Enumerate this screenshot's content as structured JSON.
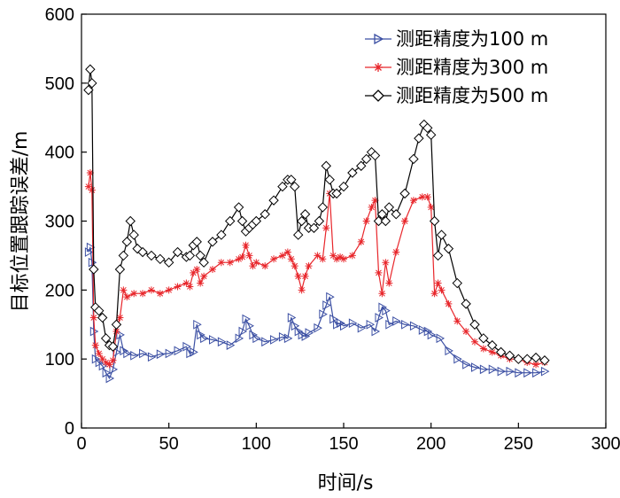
{
  "chart_data": {
    "type": "line",
    "title": "",
    "xlabel": "时间/s",
    "ylabel": "目标位置跟踪误差/m",
    "xlim": [
      0,
      300
    ],
    "ylim": [
      0,
      600
    ],
    "xticks": [
      0,
      50,
      100,
      150,
      200,
      250,
      300
    ],
    "yticks": [
      0,
      100,
      200,
      300,
      400,
      500,
      600
    ],
    "xtick_labels": [
      "0",
      "50",
      "100",
      "150",
      "200",
      "250",
      "300"
    ],
    "ytick_labels": [
      "0",
      "100",
      "200",
      "300",
      "400",
      "500",
      "600"
    ],
    "grid": false,
    "legend_position": "top-right",
    "series": [
      {
        "name": "测距精度为100 m",
        "color": "#3b4fa3",
        "marker": "triangle-right",
        "x": [
          4,
          5,
          6,
          7,
          8,
          10,
          12,
          14,
          16,
          18,
          20,
          22,
          24,
          26,
          30,
          35,
          40,
          45,
          50,
          55,
          60,
          62,
          64,
          66,
          68,
          70,
          75,
          80,
          85,
          90,
          92,
          94,
          96,
          98,
          100,
          105,
          110,
          115,
          118,
          120,
          122,
          124,
          126,
          128,
          130,
          135,
          138,
          140,
          142,
          144,
          146,
          148,
          150,
          155,
          160,
          165,
          168,
          170,
          172,
          174,
          176,
          180,
          185,
          190,
          195,
          198,
          200,
          205,
          210,
          215,
          220,
          225,
          230,
          235,
          240,
          245,
          250,
          255,
          260,
          265
        ],
        "y": [
          255,
          262,
          240,
          140,
          100,
          95,
          90,
          80,
          72,
          85,
          110,
          135,
          112,
          108,
          105,
          108,
          103,
          107,
          108,
          112,
          118,
          108,
          110,
          150,
          135,
          130,
          128,
          125,
          120,
          130,
          140,
          158,
          148,
          135,
          130,
          125,
          128,
          132,
          130,
          160,
          148,
          140,
          135,
          133,
          138,
          145,
          165,
          178,
          190,
          158,
          150,
          152,
          148,
          152,
          145,
          150,
          140,
          160,
          175,
          170,
          150,
          155,
          150,
          148,
          142,
          140,
          135,
          130,
          112,
          100,
          92,
          88,
          85,
          85,
          82,
          82,
          80,
          80,
          80,
          82
        ]
      },
      {
        "name": "测距精度为300 m",
        "color": "#e8262b",
        "marker": "star",
        "x": [
          4,
          5,
          6,
          7,
          8,
          10,
          12,
          14,
          16,
          18,
          20,
          22,
          24,
          26,
          30,
          35,
          40,
          45,
          50,
          55,
          60,
          62,
          64,
          66,
          68,
          70,
          75,
          80,
          85,
          90,
          92,
          94,
          96,
          98,
          100,
          105,
          110,
          115,
          118,
          120,
          122,
          124,
          126,
          128,
          130,
          135,
          138,
          140,
          142,
          144,
          146,
          148,
          150,
          155,
          160,
          163,
          166,
          168,
          170,
          172,
          174,
          176,
          180,
          185,
          190,
          195,
          198,
          200,
          202,
          204,
          206,
          210,
          215,
          220,
          225,
          230,
          235,
          240,
          245,
          250,
          255,
          260,
          265
        ],
        "y": [
          350,
          370,
          345,
          160,
          120,
          108,
          100,
          95,
          92,
          98,
          140,
          160,
          200,
          190,
          195,
          195,
          200,
          195,
          200,
          205,
          210,
          205,
          225,
          230,
          210,
          220,
          230,
          240,
          240,
          245,
          248,
          265,
          250,
          235,
          240,
          235,
          245,
          250,
          255,
          245,
          235,
          220,
          200,
          220,
          235,
          250,
          245,
          290,
          340,
          250,
          245,
          248,
          245,
          250,
          270,
          300,
          320,
          330,
          225,
          195,
          240,
          210,
          255,
          300,
          330,
          335,
          335,
          320,
          195,
          210,
          200,
          180,
          155,
          140,
          125,
          115,
          110,
          105,
          100,
          100,
          95,
          92,
          95
        ]
      },
      {
        "name": "测距精度为500 m",
        "color": "#000000",
        "marker": "diamond",
        "x": [
          4,
          5,
          6,
          7,
          8,
          10,
          12,
          14,
          16,
          18,
          20,
          22,
          24,
          26,
          28,
          30,
          32,
          35,
          40,
          45,
          50,
          55,
          60,
          62,
          64,
          66,
          68,
          70,
          75,
          80,
          85,
          90,
          92,
          94,
          96,
          98,
          100,
          105,
          110,
          115,
          118,
          120,
          122,
          124,
          126,
          128,
          130,
          133,
          136,
          138,
          140,
          142,
          144,
          146,
          150,
          155,
          160,
          163,
          166,
          168,
          170,
          172,
          174,
          176,
          180,
          185,
          190,
          193,
          196,
          198,
          200,
          202,
          204,
          206,
          210,
          215,
          220,
          225,
          230,
          235,
          240,
          245,
          250,
          255,
          260,
          265
        ],
        "y": [
          490,
          520,
          500,
          230,
          175,
          170,
          160,
          130,
          120,
          118,
          150,
          230,
          250,
          270,
          300,
          280,
          260,
          255,
          250,
          245,
          240,
          255,
          248,
          250,
          265,
          270,
          250,
          240,
          270,
          280,
          300,
          320,
          300,
          285,
          290,
          295,
          300,
          310,
          330,
          350,
          360,
          360,
          350,
          280,
          300,
          310,
          290,
          290,
          300,
          320,
          380,
          360,
          340,
          340,
          350,
          370,
          380,
          390,
          400,
          395,
          300,
          310,
          300,
          320,
          310,
          340,
          390,
          420,
          440,
          435,
          425,
          300,
          250,
          280,
          260,
          210,
          180,
          150,
          130,
          120,
          110,
          105,
          100,
          100,
          102,
          98
        ]
      }
    ]
  }
}
